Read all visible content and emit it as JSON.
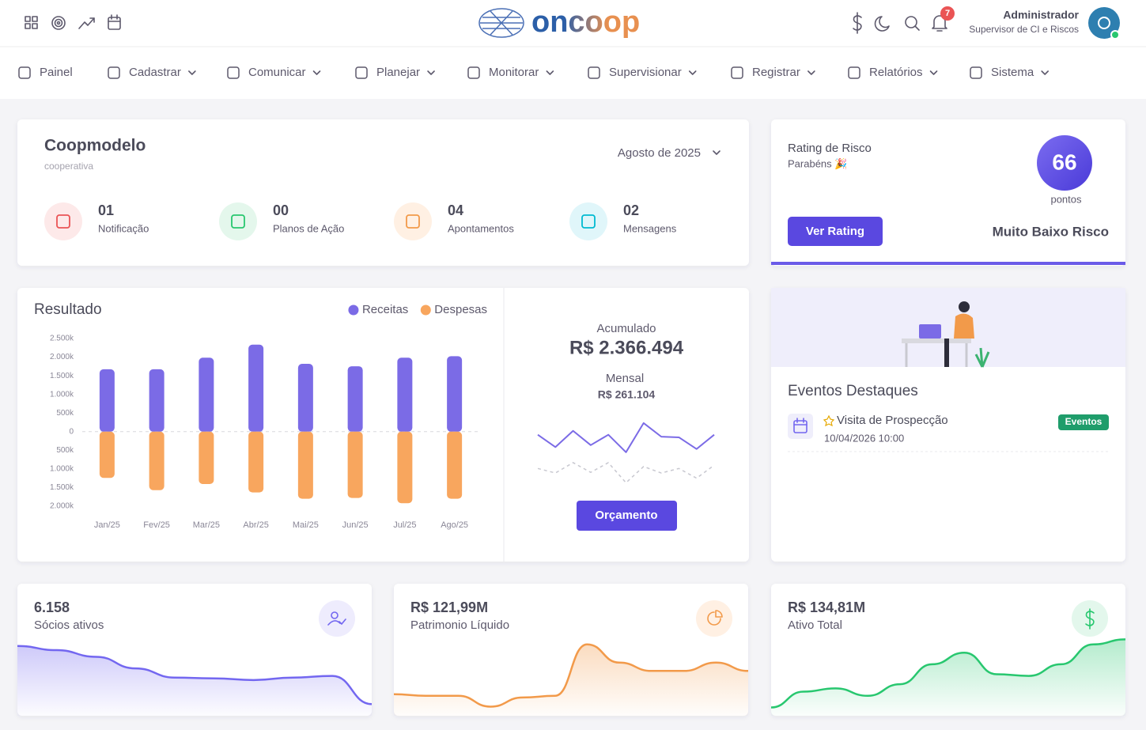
{
  "header": {
    "logo": "oncoop",
    "notifications": "7",
    "user_name": "Administrador",
    "user_role": "Supervisor de CI e Riscos"
  },
  "nav": [
    {
      "label": "Painel",
      "dropdown": false
    },
    {
      "label": "Cadastrar",
      "dropdown": true
    },
    {
      "label": "Comunicar",
      "dropdown": true
    },
    {
      "label": "Planejar",
      "dropdown": true
    },
    {
      "label": "Monitorar",
      "dropdown": true
    },
    {
      "label": "Supervisionar",
      "dropdown": true
    },
    {
      "label": "Registrar",
      "dropdown": true
    },
    {
      "label": "Relatórios",
      "dropdown": true
    },
    {
      "label": "Sistema",
      "dropdown": true
    }
  ],
  "coop": {
    "name": "Coopmodelo",
    "subtitle": "cooperativa",
    "period": "Agosto de 2025",
    "stats": [
      {
        "count": "01",
        "label": "Notificação"
      },
      {
        "count": "00",
        "label": "Planos de Ação"
      },
      {
        "count": "04",
        "label": "Apontamentos"
      },
      {
        "count": "02",
        "label": "Mensagens"
      }
    ]
  },
  "rating": {
    "title": "Rating de Risco",
    "subtitle": "Parabéns 🎉",
    "score": "66",
    "unit": "pontos",
    "button": "Ver Rating",
    "level": "Muito Baixo Risco"
  },
  "summary": {
    "accumulated_label": "Acumulado",
    "accumulated": "R$ 2.366.494",
    "monthly_label": "Mensal",
    "monthly": "R$ 261.104",
    "button": "Orçamento"
  },
  "events": {
    "title": "Eventos Destaques",
    "items": [
      {
        "name": "Visita de Prospecção",
        "date": "10/04/2026 10:00",
        "tag": "Eventos"
      }
    ]
  },
  "kpis": [
    {
      "value": "6.158",
      "label": "Sócios ativos"
    },
    {
      "value": "R$ 121,99M",
      "label": "Patrimonio Líquido"
    },
    {
      "value": "R$ 134,81M",
      "label": "Ativo Total"
    }
  ],
  "chart_data": [
    {
      "type": "bar",
      "title": "Resultado",
      "categories": [
        "Jan/25",
        "Fev/25",
        "Mar/25",
        "Abr/25",
        "Mai/25",
        "Jun/25",
        "Jul/25",
        "Ago/25"
      ],
      "series": [
        {
          "name": "Receitas",
          "color": "#7b6be6",
          "values": [
            1675,
            1675,
            1985,
            2335,
            1820,
            1755,
            1985,
            2025
          ]
        },
        {
          "name": "Despesas",
          "color": "#f8a65e",
          "values": [
            -1240,
            -1570,
            -1405,
            -1630,
            -1800,
            -1780,
            -1920,
            -1800
          ]
        }
      ],
      "ylim": [
        -2000,
        2500
      ],
      "yticks": [
        {
          "value": 2500,
          "label": "2.500k"
        },
        {
          "value": 2000,
          "label": "2.000k"
        },
        {
          "value": 1500,
          "label": "1.500k"
        },
        {
          "value": 1000,
          "label": "1.000k"
        },
        {
          "value": 500,
          "label": "500k"
        },
        0,
        {
          "value": -500,
          "label": "500k"
        },
        {
          "value": -1000,
          "label": "1.000k"
        },
        {
          "value": -1500,
          "label": "1.500k"
        },
        {
          "value": -2000,
          "label": "2.000k"
        }
      ],
      "legend": "top-right"
    },
    {
      "type": "line",
      "series": [
        {
          "color": "#7b6be6",
          "values": [
            76,
            57,
            82,
            60,
            76,
            49,
            94,
            73,
            72,
            54,
            76
          ]
        },
        {
          "color": "#c8c8d0",
          "values": [
            24,
            17,
            33,
            18,
            33,
            2,
            27,
            17,
            24,
            9,
            29
          ]
        }
      ],
      "ylim": [
        0,
        100
      ]
    },
    {
      "type": "area",
      "color": "#7367f0",
      "values": [
        84,
        79,
        71,
        57,
        46,
        45,
        43,
        46,
        48,
        14
      ],
      "ylim": [
        0,
        100
      ]
    },
    {
      "type": "area",
      "color": "#f29a4a",
      "values": [
        26,
        24,
        24,
        11,
        22,
        24,
        86,
        64,
        54,
        54,
        64,
        54
      ],
      "ylim": [
        0,
        100
      ]
    },
    {
      "type": "area",
      "color": "#28c76f",
      "values": [
        10,
        29,
        33,
        24,
        38,
        62,
        76,
        50,
        48,
        62,
        86,
        92
      ],
      "ylim": [
        0,
        100
      ]
    }
  ]
}
